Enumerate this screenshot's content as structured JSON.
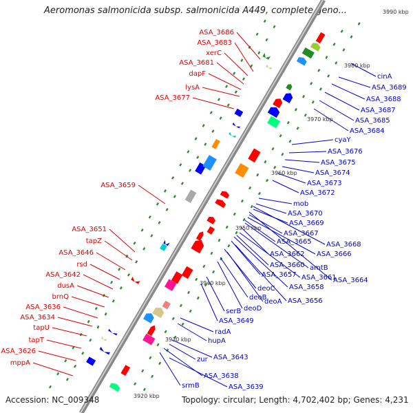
{
  "title": "Aeromonas salmonicida subsp. salmonicida A449, complete geno...",
  "accession": "Accession: NC_009348",
  "topology": "Topology: circular; Length: 4,702,402 bp; Genes: 4,231",
  "colors": {
    "left_label": "#dd0000",
    "right_label": "#0000cc",
    "backbone": "#888888"
  },
  "kbp_marks": [
    "3990 kbp",
    "3980 kbp",
    "3970 kbp",
    "3960 kbp",
    "3950 kbp",
    "3940 kbp",
    "3930 kbp",
    "3920 kbp"
  ],
  "left_genes": [
    "ASA_3686",
    "ASA_3683",
    "xerC",
    "ASA_3681",
    "dapF",
    "lysA",
    "ASA_3677",
    "ASA_3659",
    "ASA_3651",
    "tapZ",
    "ASA_3646",
    "rsd",
    "ASA_3642",
    "dusA",
    "brnQ",
    "ASA_3636",
    "ASA_3634",
    "tapU",
    "tapT",
    "ASA_3626",
    "mppA"
  ],
  "right_genes": [
    "cinA",
    "ASA_3689",
    "ASA_3688",
    "ASA_3687",
    "ASA_3685",
    "ASA_3684",
    "cyaY",
    "ASA_3676",
    "ASA_3675",
    "ASA_3674",
    "ASA_3673",
    "ASA_3672",
    "mob",
    "ASA_3670",
    "ASA_3669",
    "ASA_3667",
    "ASA_3665",
    "ASA_3668",
    "ASA_3666",
    "ASA_3662",
    "ASA_3660",
    "amtB",
    "ASA_3657",
    "ASA_3661",
    "ASA_3664",
    "ASA_3658",
    "deoC",
    "deoB",
    "ASA_3656",
    "deoA",
    "deoD",
    "serB",
    "ASA_3649",
    "radA",
    "hupA",
    "ASA_3643",
    "zur",
    "ASA_3638",
    "srmB",
    "ASA_3639"
  ]
}
